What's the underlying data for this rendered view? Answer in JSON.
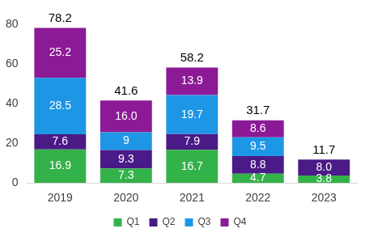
{
  "chart_data": {
    "type": "bar",
    "stacked": true,
    "data_labels": true,
    "legend": "bottom",
    "grid": false,
    "categories": [
      "2019",
      "2020",
      "2021",
      "2022",
      "2023"
    ],
    "series": [
      {
        "name": "Q1",
        "color": "#34b24a",
        "values": [
          16.9,
          7.3,
          16.7,
          4.7,
          3.8
        ]
      },
      {
        "name": "Q2",
        "color": "#4a1a87",
        "values": [
          7.6,
          9.3,
          7.9,
          8.8,
          8.0
        ],
        "value_labels": [
          "7.6",
          "9.3",
          "7.9",
          "8.8",
          "8.0"
        ]
      },
      {
        "name": "Q3",
        "color": "#1e96e6",
        "values": [
          28.5,
          9,
          19.7,
          9.5,
          null
        ]
      },
      {
        "name": "Q4",
        "color": "#8c1a96",
        "values": [
          25.2,
          16.0,
          13.9,
          8.6,
          null
        ],
        "value_labels": [
          "25.2",
          "16.0",
          "13.9",
          "8.6",
          null
        ]
      }
    ],
    "totals": [
      78.2,
      41.6,
      58.2,
      31.7,
      11.7
    ],
    "ylim": [
      0,
      80
    ],
    "yticks": [
      0,
      20,
      40,
      60,
      80
    ]
  }
}
